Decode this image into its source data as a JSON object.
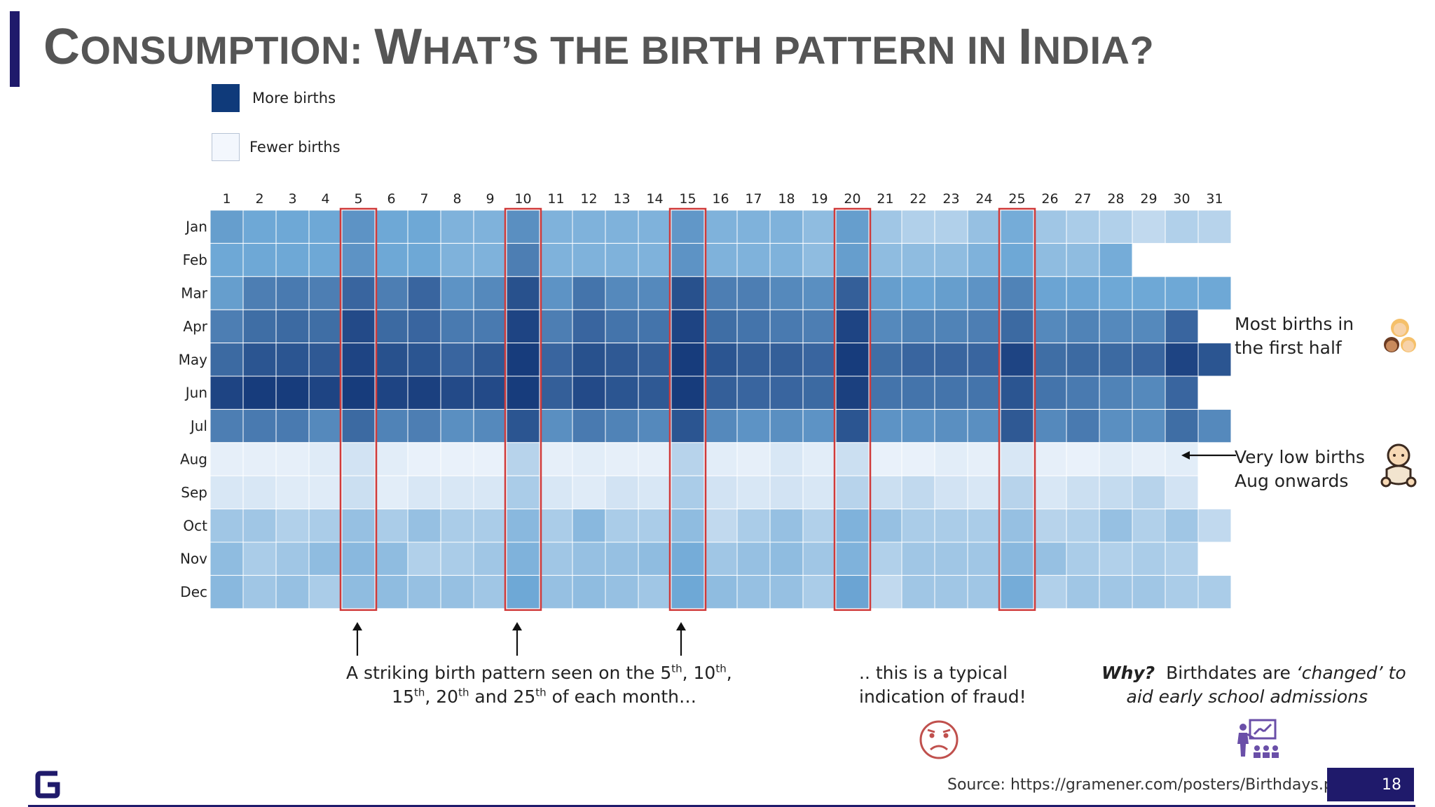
{
  "title": {
    "parts": [
      {
        "cap": "C",
        "rest": "ONSUMPTION: "
      },
      {
        "cap": "W",
        "rest": "HAT’S THE BIRTH PATTERN IN "
      },
      {
        "cap": "I",
        "rest": "NDIA?"
      }
    ]
  },
  "legend": {
    "more": {
      "label": "More births",
      "color": "#0f3a7a"
    },
    "fewer": {
      "label": "Fewer births",
      "color": "#f3f7fd"
    }
  },
  "chart_data": {
    "type": "heatmap",
    "x": [
      "1",
      "2",
      "3",
      "4",
      "5",
      "6",
      "7",
      "8",
      "9",
      "10",
      "11",
      "12",
      "13",
      "14",
      "15",
      "16",
      "17",
      "18",
      "19",
      "20",
      "21",
      "22",
      "23",
      "24",
      "25",
      "26",
      "27",
      "28",
      "29",
      "30",
      "31"
    ],
    "y": [
      "Jan",
      "Feb",
      "Mar",
      "Apr",
      "May",
      "Jun",
      "Jul",
      "Aug",
      "Sep",
      "Oct",
      "Nov",
      "Dec"
    ],
    "value_scale": "relative intensity, 0 = fewer births, 1 = more births",
    "values": [
      [
        0.45,
        0.4,
        0.4,
        0.4,
        0.5,
        0.4,
        0.4,
        0.35,
        0.35,
        0.52,
        0.35,
        0.35,
        0.35,
        0.35,
        0.48,
        0.35,
        0.35,
        0.35,
        0.3,
        0.45,
        0.25,
        0.2,
        0.2,
        0.28,
        0.38,
        0.25,
        0.22,
        0.2,
        0.15,
        0.2,
        0.18
      ],
      [
        0.4,
        0.4,
        0.4,
        0.4,
        0.5,
        0.4,
        0.4,
        0.35,
        0.35,
        0.6,
        0.35,
        0.35,
        0.35,
        0.35,
        0.5,
        0.35,
        0.35,
        0.35,
        0.3,
        0.45,
        0.3,
        0.3,
        0.3,
        0.35,
        0.4,
        0.3,
        0.3,
        0.38,
        null,
        null,
        null
      ],
      [
        0.45,
        0.6,
        0.62,
        0.6,
        0.72,
        0.6,
        0.72,
        0.5,
        0.55,
        0.82,
        0.5,
        0.65,
        0.55,
        0.55,
        0.82,
        0.6,
        0.6,
        0.55,
        0.52,
        0.75,
        0.45,
        0.42,
        0.45,
        0.5,
        0.58,
        0.42,
        0.42,
        0.4,
        0.4,
        0.4,
        0.4
      ],
      [
        0.6,
        0.68,
        0.7,
        0.68,
        0.85,
        0.7,
        0.72,
        0.62,
        0.62,
        0.88,
        0.6,
        0.72,
        0.65,
        0.65,
        0.88,
        0.68,
        0.65,
        0.62,
        0.6,
        0.88,
        0.55,
        0.58,
        0.58,
        0.6,
        0.7,
        0.55,
        0.58,
        0.55,
        0.55,
        0.72,
        null
      ],
      [
        0.7,
        0.8,
        0.8,
        0.78,
        0.88,
        0.82,
        0.8,
        0.72,
        0.78,
        0.92,
        0.72,
        0.82,
        0.78,
        0.75,
        0.92,
        0.8,
        0.75,
        0.75,
        0.72,
        0.92,
        0.68,
        0.72,
        0.72,
        0.72,
        0.88,
        0.68,
        0.7,
        0.7,
        0.72,
        0.88,
        0.8
      ],
      [
        0.88,
        0.92,
        0.92,
        0.88,
        0.92,
        0.88,
        0.9,
        0.85,
        0.85,
        0.92,
        0.75,
        0.85,
        0.8,
        0.78,
        0.92,
        0.75,
        0.72,
        0.72,
        0.7,
        0.9,
        0.65,
        0.65,
        0.65,
        0.65,
        0.8,
        0.65,
        0.62,
        0.58,
        0.55,
        0.72,
        null
      ],
      [
        0.6,
        0.62,
        0.62,
        0.55,
        0.7,
        0.58,
        0.6,
        0.52,
        0.55,
        0.8,
        0.52,
        0.62,
        0.58,
        0.55,
        0.8,
        0.55,
        0.5,
        0.52,
        0.5,
        0.8,
        0.5,
        0.5,
        0.52,
        0.52,
        0.78,
        0.55,
        0.62,
        0.52,
        0.52,
        0.68,
        0.55
      ],
      [
        0.04,
        0.04,
        0.04,
        0.06,
        0.1,
        0.05,
        0.03,
        0.03,
        0.03,
        0.18,
        0.04,
        0.05,
        0.04,
        0.04,
        0.18,
        0.05,
        0.04,
        0.08,
        0.05,
        0.12,
        0.03,
        0.03,
        0.05,
        0.04,
        0.08,
        0.04,
        0.03,
        0.06,
        0.04,
        0.05,
        null
      ],
      [
        0.08,
        0.08,
        0.06,
        0.06,
        0.12,
        0.05,
        0.08,
        0.08,
        0.08,
        0.22,
        0.08,
        0.06,
        0.1,
        0.08,
        0.22,
        0.1,
        0.08,
        0.1,
        0.08,
        0.18,
        0.12,
        0.15,
        0.1,
        0.08,
        0.18,
        0.08,
        0.12,
        0.14,
        0.18,
        0.1,
        null
      ],
      [
        0.25,
        0.25,
        0.2,
        0.22,
        0.28,
        0.22,
        0.28,
        0.22,
        0.22,
        0.32,
        0.22,
        0.32,
        0.22,
        0.22,
        0.3,
        0.15,
        0.22,
        0.28,
        0.2,
        0.35,
        0.28,
        0.22,
        0.22,
        0.22,
        0.28,
        0.18,
        0.2,
        0.28,
        0.2,
        0.25,
        0.15
      ],
      [
        0.3,
        0.22,
        0.25,
        0.3,
        0.32,
        0.3,
        0.2,
        0.22,
        0.25,
        0.35,
        0.25,
        0.28,
        0.28,
        0.3,
        0.38,
        0.25,
        0.28,
        0.3,
        0.25,
        0.35,
        0.2,
        0.25,
        0.25,
        0.25,
        0.32,
        0.28,
        0.22,
        0.2,
        0.22,
        0.2,
        null
      ],
      [
        0.32,
        0.25,
        0.28,
        0.22,
        0.3,
        0.3,
        0.28,
        0.28,
        0.25,
        0.4,
        0.28,
        0.3,
        0.28,
        0.25,
        0.4,
        0.3,
        0.28,
        0.28,
        0.22,
        0.42,
        0.15,
        0.25,
        0.25,
        0.25,
        0.38,
        0.2,
        0.25,
        0.25,
        0.25,
        0.22,
        0.22
      ]
    ],
    "highlighted_columns": [
      "5",
      "10",
      "15",
      "20",
      "25"
    ],
    "highlight_color": "#d03a3a",
    "colors": {
      "low": "#f3f7fd",
      "high": "#0a2b6e"
    }
  },
  "annotations": {
    "first_half": [
      "Most births in",
      "the first half"
    ],
    "aug_onwards": [
      "Very low births",
      "Aug onwards"
    ],
    "pattern": {
      "line1_parts": [
        "A striking birth pattern seen on the 5",
        "th",
        ", 10",
        "th",
        ","
      ],
      "line2_parts": [
        "15",
        "th",
        ", 20",
        "th",
        " and 25",
        "th",
        " of each month…"
      ]
    },
    "fraud": [
      "..  this is a typical",
      "indication of fraud!"
    ],
    "why": {
      "bold": "Why?",
      "line1_normal": "Birthdates are ",
      "line1_italic": "‘changed’ to",
      "line2_italic": "aid early school admissions"
    }
  },
  "icons": {
    "girls": "girls-emoji-icon",
    "baby": "baby-emoji-icon",
    "sad_face": "sad-face-icon",
    "teacher": "teacher-classroom-icon",
    "logo": "gramener-logo-icon"
  },
  "footer": {
    "source": "Source: https://gramener.com/posters/Birthdays.pdf",
    "page_number": "18"
  }
}
